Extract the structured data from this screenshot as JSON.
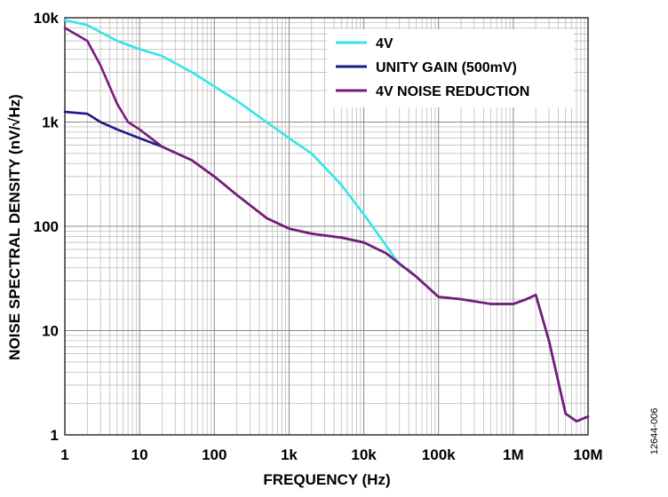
{
  "chart_data": {
    "type": "line",
    "xlabel": "FREQUENCY (Hz)",
    "ylabel": "NOISE SPECTRAL DENSITY (nV/√Hz)",
    "x_scale": "log",
    "y_scale": "log",
    "xlim": [
      1,
      10000000
    ],
    "ylim": [
      1,
      10000
    ],
    "grid": true,
    "legend_position": "top-right",
    "figure_id": "12644-006",
    "x_ticks": [
      {
        "value": 1,
        "label": "1"
      },
      {
        "value": 10,
        "label": "10"
      },
      {
        "value": 100,
        "label": "100"
      },
      {
        "value": 1000,
        "label": "1k"
      },
      {
        "value": 10000,
        "label": "10k"
      },
      {
        "value": 100000,
        "label": "100k"
      },
      {
        "value": 1000000,
        "label": "1M"
      },
      {
        "value": 10000000,
        "label": "10M"
      }
    ],
    "y_ticks": [
      {
        "value": 1,
        "label": "1"
      },
      {
        "value": 10,
        "label": "10"
      },
      {
        "value": 100,
        "label": "100"
      },
      {
        "value": 1000,
        "label": "1k"
      },
      {
        "value": 10000,
        "label": "10k"
      }
    ],
    "series": [
      {
        "name": "4V",
        "color": "#33e6e6",
        "x": [
          1,
          2,
          5,
          10,
          20,
          50,
          100,
          200,
          500,
          1000,
          2000,
          5000,
          10000,
          20000,
          30000,
          40000,
          50000,
          100000,
          200000,
          500000,
          1000000,
          1500000,
          2000000,
          3000000,
          5000000,
          7000000,
          10000000
        ],
        "y": [
          9500,
          8500,
          6000,
          5000,
          4300,
          3000,
          2200,
          1600,
          1000,
          700,
          500,
          250,
          130,
          65,
          43,
          38,
          33,
          21,
          20,
          18,
          18,
          20,
          22,
          8,
          1.6,
          1.35,
          1.5
        ]
      },
      {
        "name": "UNITY GAIN (500mV)",
        "color": "#1a1a80",
        "x": [
          1,
          2,
          3,
          5,
          10,
          20,
          50,
          100,
          200,
          500,
          1000,
          2000,
          5000,
          10000,
          20000,
          50000,
          100000,
          200000,
          500000,
          1000000,
          1500000,
          2000000,
          3000000,
          5000000,
          7000000,
          10000000
        ],
        "y": [
          1250,
          1200,
          1000,
          850,
          700,
          580,
          430,
          300,
          200,
          120,
          95,
          85,
          78,
          70,
          55,
          33,
          21,
          20,
          18,
          18,
          20,
          22,
          8,
          1.6,
          1.35,
          1.5
        ]
      },
      {
        "name": "4V NOISE REDUCTION",
        "color": "#7a1a7a",
        "x": [
          1,
          2,
          3,
          5,
          7,
          10,
          20,
          50,
          100,
          200,
          500,
          1000,
          2000,
          5000,
          10000,
          20000,
          50000,
          100000,
          200000,
          500000,
          1000000,
          1500000,
          2000000,
          3000000,
          5000000,
          7000000,
          10000000
        ],
        "y": [
          8000,
          6000,
          3500,
          1500,
          1000,
          850,
          580,
          430,
          300,
          200,
          120,
          95,
          85,
          78,
          70,
          55,
          33,
          21,
          20,
          18,
          18,
          20,
          22,
          8,
          1.6,
          1.35,
          1.5
        ]
      }
    ]
  }
}
